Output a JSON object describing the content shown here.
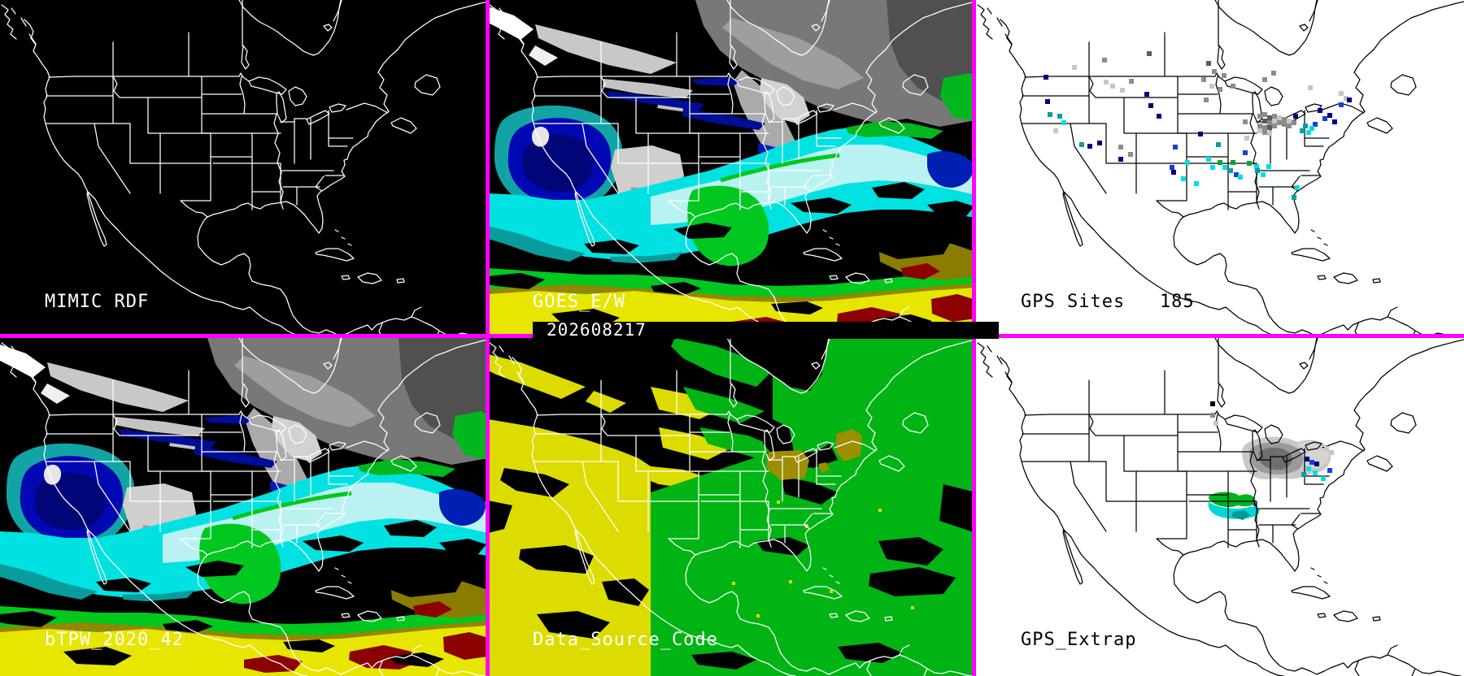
{
  "timestamp": "202608217",
  "panels": {
    "mimic_rdf": {
      "label": "MIMIC RDF",
      "type": "map-outline-only",
      "background": "#000000"
    },
    "goes_ew": {
      "label": "GOES_E/W",
      "type": "tpw-satellite-field",
      "background": "#000000"
    },
    "gps_sites": {
      "label": "GPS Sites   185",
      "site_count": 185,
      "background": "#FFFFFF"
    },
    "btpw": {
      "label": "bTPW_2020_42",
      "type": "tpw-blended-field",
      "background": "#000000"
    },
    "data_source": {
      "label": "Data_Source_Code",
      "west_source_color": "#DCDC00",
      "east_source_color": "#00B414",
      "gps_source_color": "#9C8E00",
      "background": "#000000"
    },
    "gps_extrap": {
      "label": "GPS_Extrap",
      "background": "#FFFFFF"
    }
  },
  "colors": {
    "border": "#FF00FF",
    "map_outline_dark_panels": "#FFFFFF",
    "map_outline_light_panels": "#000000",
    "g": "#8C8C8C",
    "dg": "#5C5C5C",
    "lg": "#C6C6C6",
    "n": "#000082",
    "b": "#1E3CDC",
    "t": "#00A0A0",
    "c": "#00E0E0",
    "gr": "#00A828",
    "k": "#000000",
    "tpw_cyan": "#00E2E2",
    "tpw_pale": "#BAF2F2",
    "tpw_navy": "#0008B4",
    "tpw_green": "#00C820",
    "tpw_yellow": "#E6E600",
    "tpw_olive": "#948600",
    "tpw_darkred": "#8C0000",
    "tpw_gray": "#787878"
  },
  "gps_sites_squares": [
    [
      210,
      63,
      "dg"
    ],
    [
      155,
      71,
      "g"
    ],
    [
      283,
      75,
      "dg"
    ],
    [
      118,
      80,
      "lg"
    ],
    [
      290,
      85,
      "g"
    ],
    [
      302,
      90,
      "g"
    ],
    [
      352,
      95,
      "g"
    ],
    [
      363,
      87,
      "g"
    ],
    [
      157,
      98,
      "lg"
    ],
    [
      165,
      103,
      "lg"
    ],
    [
      188,
      97,
      "g"
    ],
    [
      177,
      108,
      "lg"
    ],
    [
      277,
      95,
      "g"
    ],
    [
      287,
      103,
      "lg"
    ],
    [
      297,
      107,
      "g"
    ],
    [
      313,
      103,
      "g"
    ],
    [
      280,
      120,
      "g"
    ],
    [
      83,
      92,
      "n"
    ],
    [
      85,
      122,
      "n"
    ],
    [
      88,
      138,
      "t"
    ],
    [
      100,
      140,
      "t"
    ],
    [
      105,
      148,
      "c"
    ],
    [
      95,
      158,
      "lg"
    ],
    [
      207,
      113,
      "n"
    ],
    [
      212,
      127,
      "n"
    ],
    [
      222,
      140,
      "n"
    ],
    [
      127,
      175,
      "t"
    ],
    [
      137,
      177,
      "n"
    ],
    [
      149,
      173,
      "n"
    ],
    [
      175,
      178,
      "g"
    ],
    [
      187,
      187,
      "g"
    ],
    [
      175,
      193,
      "n"
    ],
    [
      273,
      162,
      "n"
    ],
    [
      242,
      178,
      "b"
    ],
    [
      257,
      197,
      "c"
    ],
    [
      238,
      203,
      "b"
    ],
    [
      240,
      209,
      "n"
    ],
    [
      252,
      217,
      "c"
    ],
    [
      268,
      223,
      "c"
    ],
    [
      283,
      193,
      "c"
    ],
    [
      288,
      203,
      "c"
    ],
    [
      297,
      197,
      "gr"
    ],
    [
      313,
      197,
      "gr"
    ],
    [
      303,
      203,
      "c"
    ],
    [
      310,
      207,
      "t"
    ],
    [
      317,
      212,
      "b"
    ],
    [
      322,
      215,
      "c"
    ],
    [
      328,
      185,
      "b"
    ],
    [
      333,
      198,
      "gr"
    ],
    [
      342,
      202,
      "c"
    ],
    [
      343,
      207,
      "t"
    ],
    [
      357,
      202,
      "c"
    ],
    [
      295,
      175,
      "t"
    ],
    [
      350,
      212,
      "c"
    ],
    [
      328,
      147,
      "g"
    ],
    [
      330,
      167,
      "lg"
    ],
    [
      390,
      140,
      "n"
    ],
    [
      392,
      228,
      "c"
    ],
    [
      388,
      240,
      "t"
    ],
    [
      346,
      140,
      "g"
    ],
    [
      352,
      138,
      "g"
    ],
    [
      358,
      142,
      "dg"
    ],
    [
      364,
      140,
      "g"
    ],
    [
      352,
      146,
      "dg"
    ],
    [
      358,
      148,
      "g"
    ],
    [
      364,
      146,
      "lg"
    ],
    [
      346,
      152,
      "g"
    ],
    [
      352,
      154,
      "g"
    ],
    [
      358,
      154,
      "dg"
    ],
    [
      364,
      152,
      "g"
    ],
    [
      370,
      148,
      "g"
    ],
    [
      370,
      142,
      "lg"
    ],
    [
      376,
      144,
      "g"
    ],
    [
      376,
      150,
      "g"
    ],
    [
      382,
      146,
      "lg"
    ],
    [
      382,
      152,
      "g"
    ],
    [
      388,
      148,
      "g"
    ],
    [
      346,
      158,
      "lg"
    ],
    [
      352,
      160,
      "g"
    ],
    [
      358,
      161,
      "lg"
    ],
    [
      408,
      105,
      "lg"
    ],
    [
      446,
      112,
      "lg"
    ],
    [
      452,
      118,
      "lg"
    ],
    [
      420,
      133,
      "n"
    ],
    [
      432,
      139,
      "n"
    ],
    [
      426,
      143,
      "b"
    ],
    [
      438,
      147,
      "n"
    ],
    [
      414,
      150,
      "b"
    ],
    [
      402,
      152,
      "t"
    ],
    [
      410,
      155,
      "c"
    ],
    [
      398,
      158,
      "t"
    ],
    [
      406,
      160,
      "c"
    ],
    [
      446,
      126,
      "b"
    ],
    [
      456,
      120,
      "n"
    ]
  ],
  "gps_extrap_squares": [
    [
      288,
      78,
      "k"
    ],
    [
      288,
      92,
      "g"
    ],
    [
      292,
      102,
      "lg"
    ],
    [
      404,
      146,
      "n"
    ],
    [
      410,
      150,
      "b"
    ],
    [
      406,
      158,
      "c"
    ],
    [
      416,
      152,
      "n"
    ],
    [
      414,
      163,
      "c"
    ],
    [
      400,
      165,
      "t"
    ],
    [
      428,
      133,
      "lg"
    ],
    [
      434,
      138,
      "lg"
    ],
    [
      424,
      170,
      "c"
    ],
    [
      432,
      160,
      "b"
    ]
  ]
}
